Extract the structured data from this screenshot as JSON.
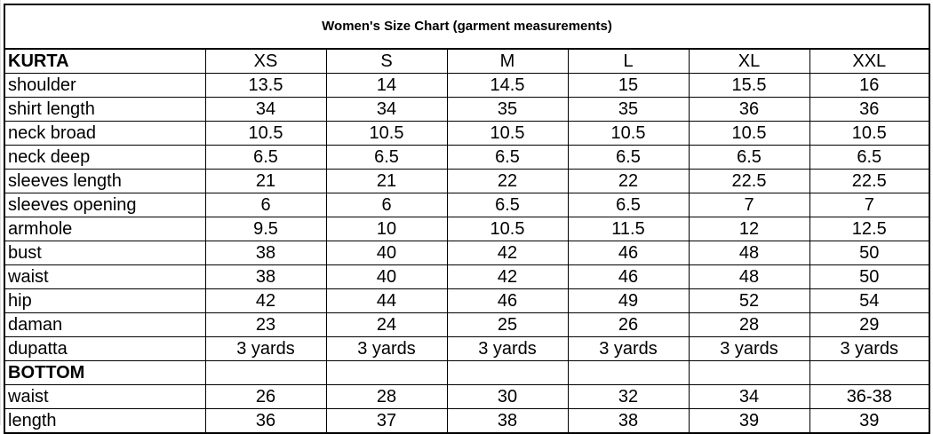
{
  "title": "Women's Size Chart (garment measurements)",
  "kurta": {
    "section_label": "KURTA",
    "sizes": [
      "XS",
      "S",
      "M",
      "L",
      "XL",
      "XXL"
    ],
    "rows": [
      {
        "label": "shoulder",
        "values": [
          "13.5",
          "14",
          "14.5",
          "15",
          "15.5",
          "16"
        ]
      },
      {
        "label": "shirt length",
        "values": [
          "34",
          "34",
          "35",
          "35",
          "36",
          "36"
        ]
      },
      {
        "label": "neck broad",
        "values": [
          "10.5",
          "10.5",
          "10.5",
          "10.5",
          "10.5",
          "10.5"
        ]
      },
      {
        "label": "neck deep",
        "values": [
          "6.5",
          "6.5",
          "6.5",
          "6.5",
          "6.5",
          "6.5"
        ]
      },
      {
        "label": "sleeves length",
        "values": [
          "21",
          "21",
          "22",
          "22",
          "22.5",
          "22.5"
        ]
      },
      {
        "label": "sleeves opening",
        "values": [
          "6",
          "6",
          "6.5",
          "6.5",
          "7",
          "7"
        ]
      },
      {
        "label": "armhole",
        "values": [
          "9.5",
          "10",
          "10.5",
          "11.5",
          "12",
          "12.5"
        ]
      },
      {
        "label": "bust",
        "values": [
          "38",
          "40",
          "42",
          "46",
          "48",
          "50"
        ]
      },
      {
        "label": "waist",
        "values": [
          "38",
          "40",
          "42",
          "46",
          "48",
          "50"
        ]
      },
      {
        "label": "hip",
        "values": [
          "42",
          "44",
          "46",
          "49",
          "52",
          "54"
        ]
      },
      {
        "label": "daman",
        "values": [
          "23",
          "24",
          "25",
          "26",
          "28",
          "29"
        ]
      },
      {
        "label": "dupatta",
        "values": [
          "3 yards",
          "3 yards",
          "3 yards",
          "3 yards",
          "3 yards",
          "3 yards"
        ]
      }
    ]
  },
  "bottom": {
    "section_label": "BOTTOM",
    "rows": [
      {
        "label": "waist",
        "values": [
          "26",
          "28",
          "30",
          "32",
          "34",
          "36-38"
        ]
      },
      {
        "label": "length",
        "values": [
          "36",
          "37",
          "38",
          "38",
          "39",
          "39"
        ]
      }
    ]
  }
}
